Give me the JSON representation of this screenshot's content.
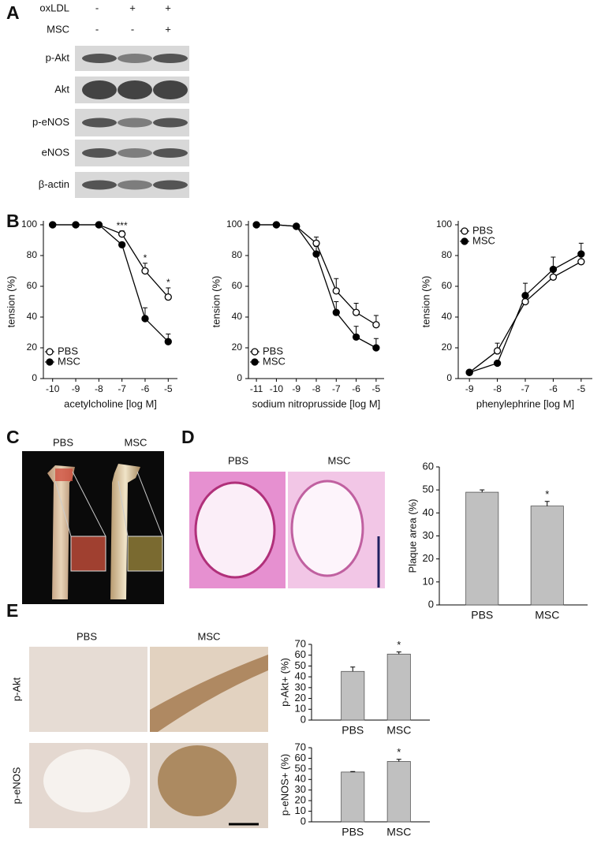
{
  "panels": [
    "A",
    "B",
    "C",
    "D",
    "E"
  ],
  "blot": {
    "header_rows": [
      {
        "label": "oxLDL",
        "signs": [
          "-",
          "+",
          "+"
        ]
      },
      {
        "label": "MSC",
        "signs": [
          "-",
          "-",
          "+"
        ]
      }
    ],
    "rows": [
      "p-Akt",
      "Akt",
      "p-eNOS",
      "eNOS",
      "β-actin"
    ]
  },
  "images": {
    "C": {
      "labels": [
        "PBS",
        "MSC"
      ]
    },
    "D": {
      "labels": [
        "PBS",
        "MSC"
      ]
    },
    "E": {
      "columns": [
        "PBS",
        "MSC"
      ],
      "rows": [
        "p-Akt",
        "p-eNOS"
      ]
    }
  },
  "chart_data": [
    {
      "type": "line",
      "xlabel": "acetylcholine [log M]",
      "ylabel": "tension (%)",
      "x": [
        -10,
        -9,
        -8,
        -7,
        -6,
        -5
      ],
      "xlim": [
        -10.4,
        -4.6
      ],
      "xticks": [
        -10,
        -9,
        -8,
        -7,
        -6,
        -5
      ],
      "ylim": [
        0,
        100
      ],
      "yticks": [
        0,
        20,
        40,
        60,
        80,
        100
      ],
      "legend": "lower left",
      "series": [
        {
          "name": "PBS",
          "color": "#000000",
          "marker": "open",
          "values": [
            100,
            100,
            100,
            94,
            70,
            53
          ],
          "errors": [
            null,
            null,
            null,
            2,
            5,
            6
          ]
        },
        {
          "name": "MSC",
          "color": "#000000",
          "marker": "filled",
          "values": [
            100,
            100,
            100,
            87,
            39,
            24
          ],
          "errors": [
            null,
            null,
            null,
            null,
            7,
            5
          ]
        }
      ],
      "annotations": [
        {
          "text": "***",
          "x": -7
        },
        {
          "text": "*",
          "x": -6
        },
        {
          "text": "*",
          "x": -5
        }
      ]
    },
    {
      "type": "line",
      "xlabel": "sodium nitroprusside [log M]",
      "ylabel": "tension (%)",
      "x": [
        -11,
        -10,
        -9,
        -8,
        -7,
        -6,
        -5
      ],
      "xlim": [
        -11.4,
        -4.6
      ],
      "xticks": [
        -11,
        -10,
        -9,
        -8,
        -7,
        -6,
        -5
      ],
      "ylim": [
        0,
        100
      ],
      "yticks": [
        0,
        20,
        40,
        60,
        80,
        100
      ],
      "legend": "lower left",
      "series": [
        {
          "name": "PBS",
          "color": "#000000",
          "marker": "open",
          "values": [
            100,
            100,
            99,
            88,
            57,
            43,
            35
          ],
          "errors": [
            null,
            null,
            null,
            4,
            8,
            6,
            6
          ]
        },
        {
          "name": "MSC",
          "color": "#000000",
          "marker": "filled",
          "values": [
            100,
            100,
            99,
            81,
            43,
            27,
            20
          ],
          "errors": [
            null,
            null,
            null,
            5,
            7,
            7,
            6
          ]
        }
      ],
      "annotations": []
    },
    {
      "type": "line",
      "xlabel": "phenylephrine [log M]",
      "ylabel": "tension (%)",
      "x": [
        -9,
        -8,
        -7,
        -6,
        -5
      ],
      "xlim": [
        -9.4,
        -4.6
      ],
      "xticks": [
        -9,
        -8,
        -7,
        -6,
        -5
      ],
      "ylim": [
        0,
        100
      ],
      "yticks": [
        0,
        20,
        40,
        60,
        80,
        100
      ],
      "legend": "upper left",
      "series": [
        {
          "name": "PBS",
          "color": "#000000",
          "marker": "open",
          "values": [
            4,
            18,
            50,
            66,
            76
          ],
          "errors": [
            null,
            5,
            3,
            5,
            4
          ]
        },
        {
          "name": "MSC",
          "color": "#000000",
          "marker": "filled",
          "values": [
            4,
            10,
            54,
            71,
            81
          ],
          "errors": [
            null,
            null,
            8,
            8,
            7
          ]
        }
      ],
      "annotations": []
    },
    {
      "type": "bar",
      "ylabel": "Plaque area (%)",
      "categories": [
        "PBS",
        "MSC"
      ],
      "values": [
        49,
        43
      ],
      "errors": [
        1,
        2
      ],
      "color": "#c0c0c0",
      "ylim": [
        0,
        60
      ],
      "yticks": [
        0,
        10,
        20,
        30,
        40,
        50,
        60
      ],
      "annotations": [
        {
          "text": "*",
          "index": 1
        }
      ]
    },
    {
      "type": "bar",
      "ylabel": "p-Akt+ (%)",
      "categories": [
        "PBS",
        "MSC"
      ],
      "values": [
        45,
        61
      ],
      "errors": [
        4,
        2
      ],
      "color": "#c0c0c0",
      "ylim": [
        0,
        70
      ],
      "yticks": [
        0,
        10,
        20,
        30,
        40,
        50,
        60,
        70
      ],
      "annotations": [
        {
          "text": "*",
          "index": 1
        }
      ]
    },
    {
      "type": "bar",
      "ylabel": "p-eNOS+ (%)",
      "categories": [
        "PBS",
        "MSC"
      ],
      "values": [
        47,
        57
      ],
      "errors": [
        0.5,
        2
      ],
      "color": "#c0c0c0",
      "ylim": [
        0,
        70
      ],
      "yticks": [
        0,
        10,
        20,
        30,
        40,
        50,
        60,
        70
      ],
      "annotations": [
        {
          "text": "*",
          "index": 1
        }
      ]
    }
  ]
}
